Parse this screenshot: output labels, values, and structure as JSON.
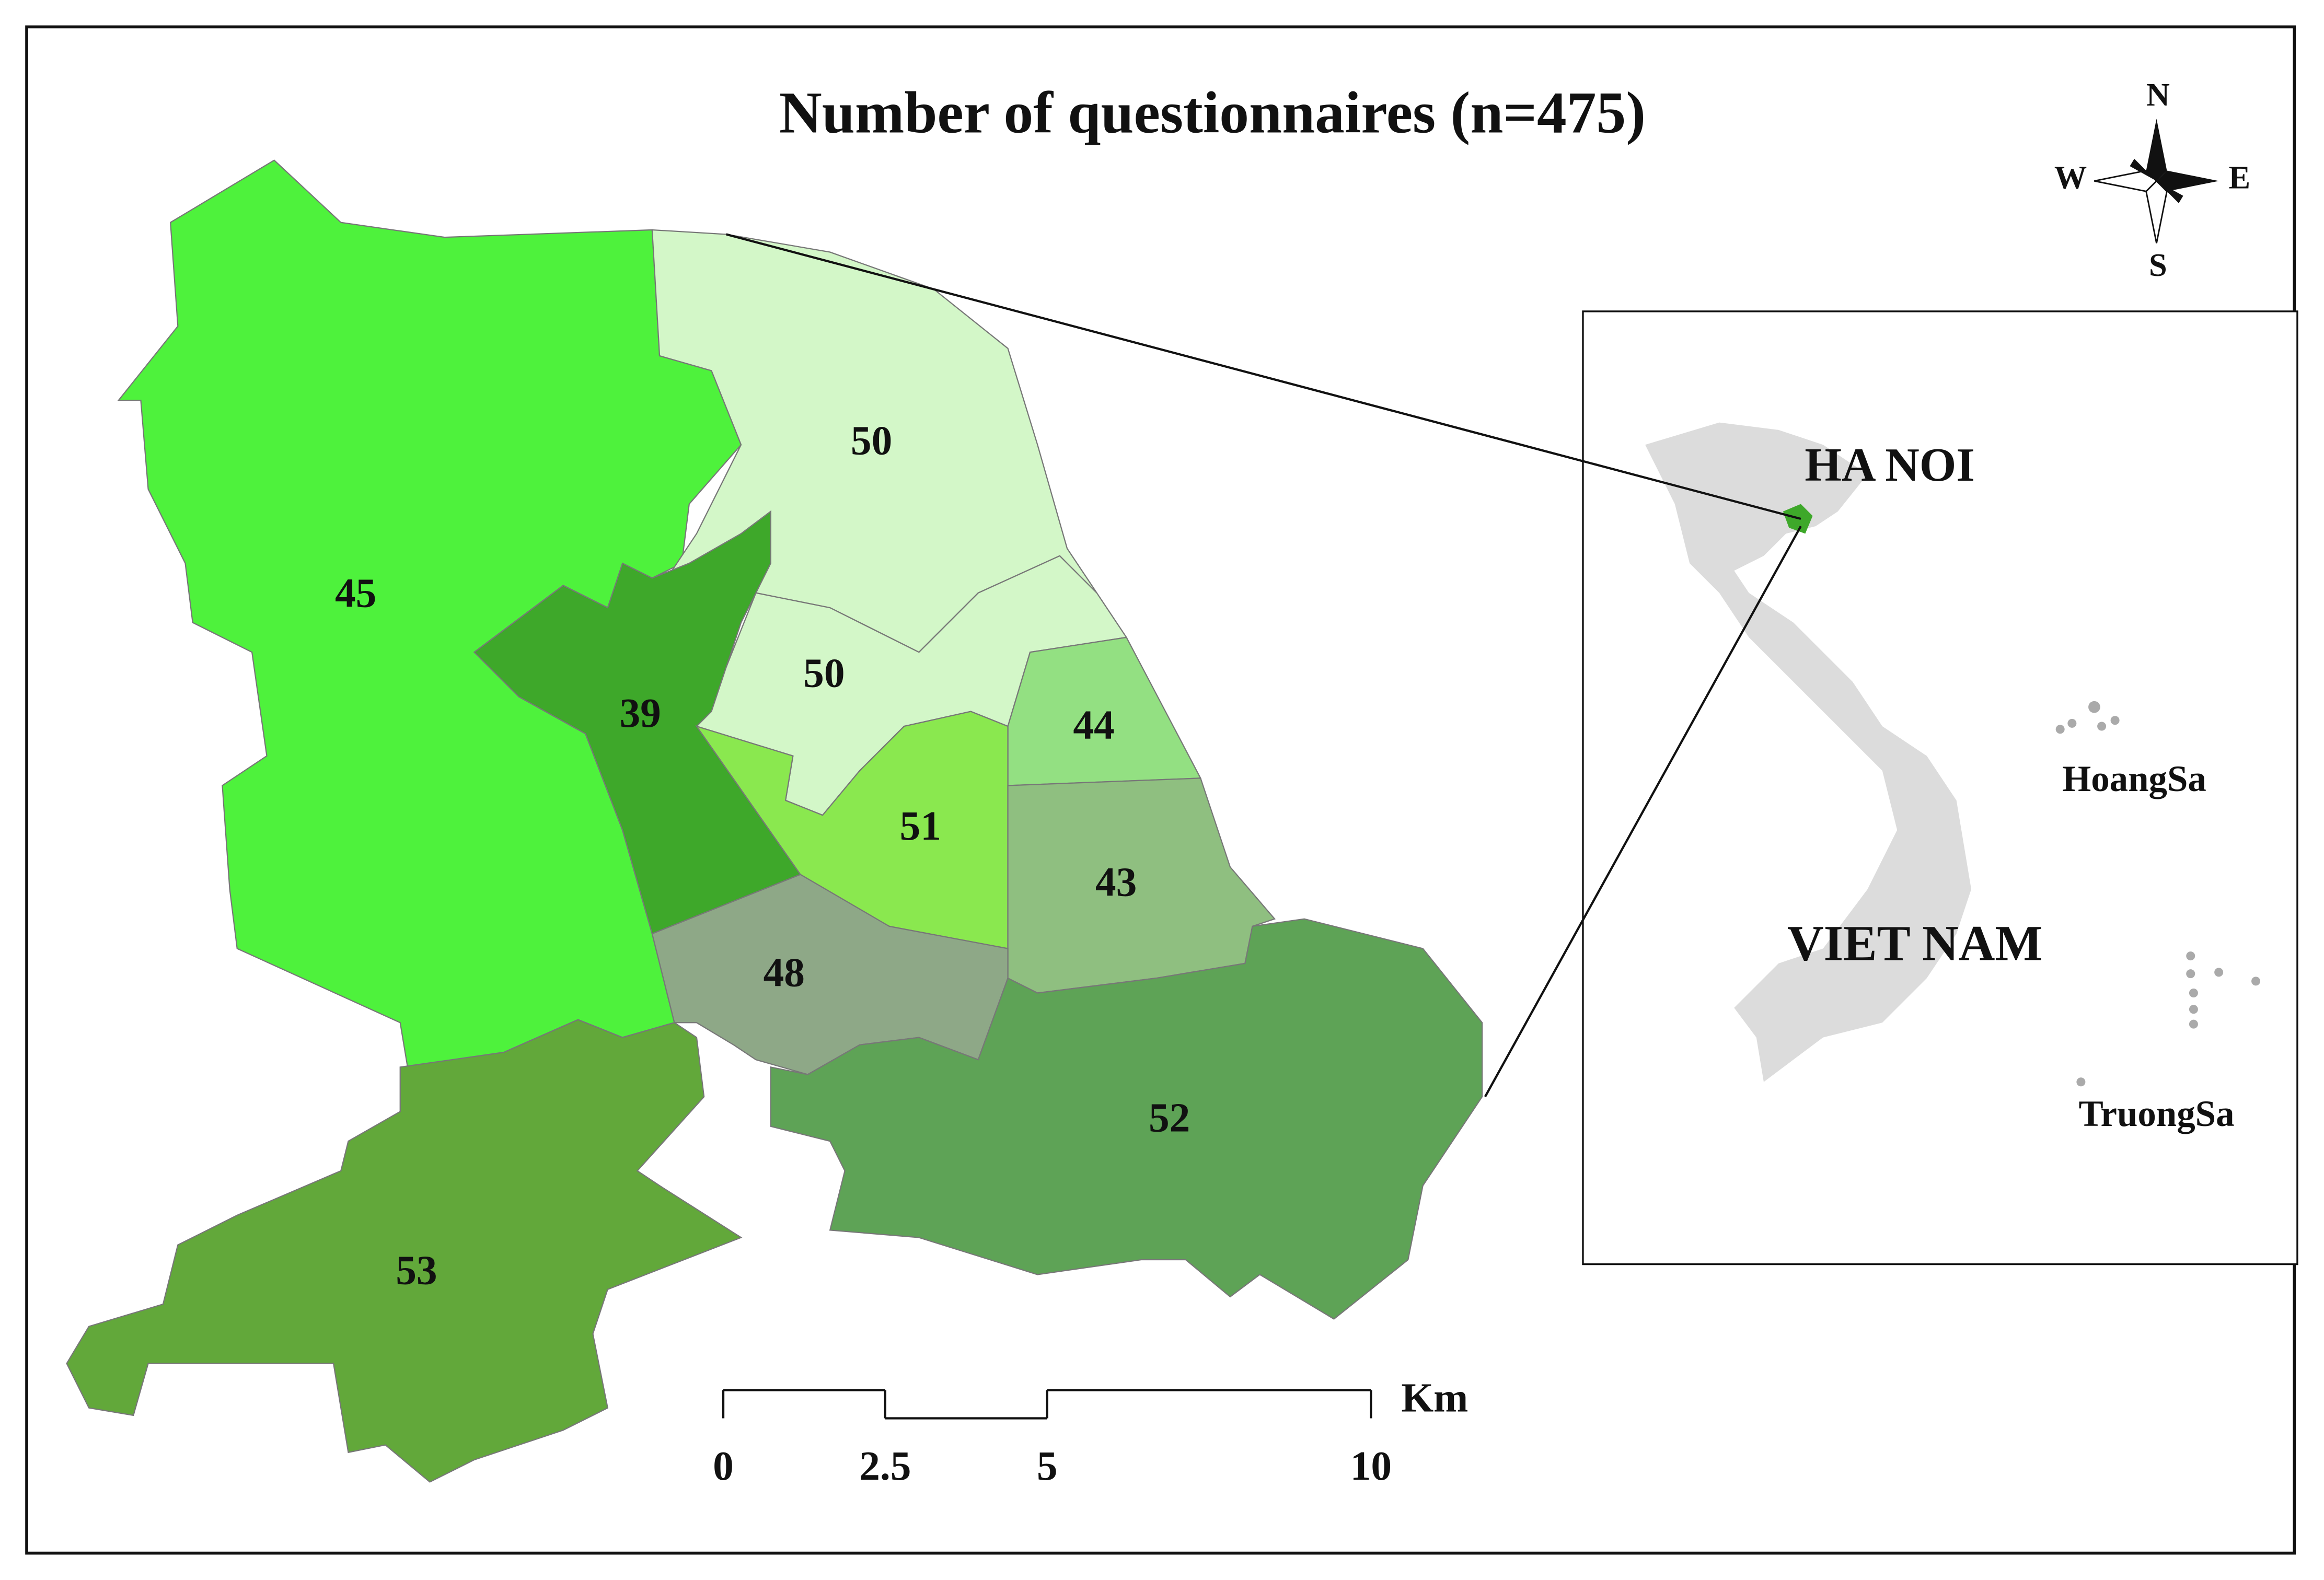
{
  "title": "Number of questionnaires (n=475)",
  "districts": [
    {
      "value": 45,
      "color": "#4ef23c"
    },
    {
      "value": 50,
      "color": "#d3f7c8"
    },
    {
      "value": 50,
      "color": "#d3f7c8"
    },
    {
      "value": 39,
      "color": "#3ea82a"
    },
    {
      "value": 44,
      "color": "#93e082"
    },
    {
      "value": 51,
      "color": "#8ae84f"
    },
    {
      "value": 43,
      "color": "#8fbf80"
    },
    {
      "value": 48,
      "color": "#8ea887"
    },
    {
      "value": 52,
      "color": "#5ea356"
    },
    {
      "value": 53,
      "color": "#62a83a"
    }
  ],
  "scale_bar": {
    "unit": "Km",
    "ticks": [
      0,
      2.5,
      5,
      10
    ]
  },
  "compass": {
    "north": "N",
    "south": "S",
    "west": "W",
    "east": "E"
  },
  "inset": {
    "city": "HA NOI",
    "country": "VIET NAM",
    "islands_north": "HoangSa",
    "islands_south": "TruongSa"
  }
}
